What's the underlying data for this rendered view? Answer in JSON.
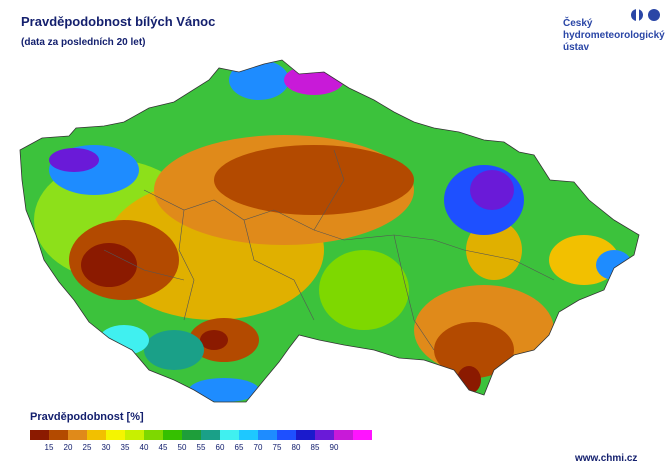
{
  "header": {
    "title": "Pravděpodobnost bílých Vánoc",
    "subtitle": "(data za posledních 20 let)"
  },
  "brand": {
    "lines": [
      "Český",
      "hydrometeorologický",
      "ústav"
    ],
    "logo_icon": "chmi-logo-icon",
    "color": "#2a46a6"
  },
  "legend": {
    "title": "Pravděpodobnost [%]",
    "colors": [
      "#8b1a00",
      "#b34a00",
      "#e08a1a",
      "#f2c000",
      "#f5f500",
      "#c8f000",
      "#7ed800",
      "#35c000",
      "#1e9e3a",
      "#1aa088",
      "#40f0f0",
      "#1ec8ff",
      "#1e8cff",
      "#1e50ff",
      "#1a1acc",
      "#6a1ad8",
      "#c81ad8",
      "#ff14ff"
    ],
    "ticks": [
      "15",
      "20",
      "25",
      "30",
      "35",
      "40",
      "45",
      "50",
      "55",
      "60",
      "65",
      "70",
      "75",
      "80",
      "85",
      "90"
    ]
  },
  "footer": {
    "url": "www.chmi.cz"
  }
}
